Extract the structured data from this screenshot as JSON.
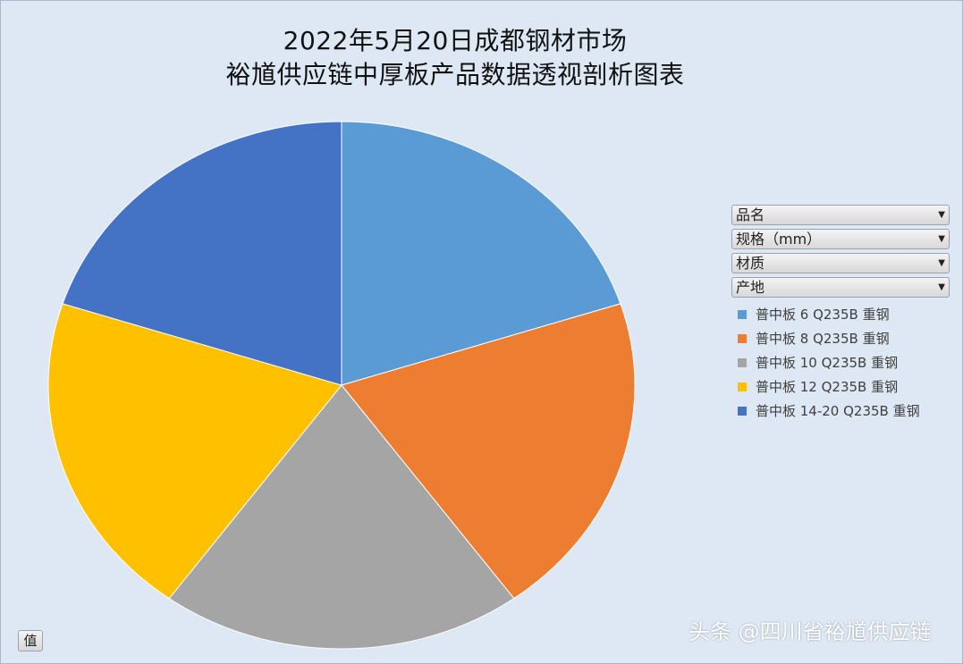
{
  "chart_data": {
    "type": "pie",
    "title": [
      "2022年5月20日成都钢材市场",
      "裕馗供应链中厚板产品数据透视剖析图表"
    ],
    "slices": [
      {
        "name": "普中板 6 Q235B 重钢",
        "value": 20,
        "color": "#5b9bd5"
      },
      {
        "name": "普中板 8 Q235B 重钢",
        "value": 20,
        "color": "#ed7d31"
      },
      {
        "name": "普中板 10 Q235B 重钢",
        "value": 20,
        "color": "#a5a5a5"
      },
      {
        "name": "普中板 12 Q235B 重钢",
        "value": 20,
        "color": "#ffc000"
      },
      {
        "name": "普中板 14-20 Q235B 重钢",
        "value": 20,
        "color": "#4472c4"
      }
    ],
    "legend_position": "right"
  },
  "filters": [
    {
      "label": "品名"
    },
    {
      "label": "规格（mm）"
    },
    {
      "label": "材质"
    },
    {
      "label": "产地"
    }
  ],
  "values_button": "值",
  "watermark": "头条 @四川省裕馗供应链"
}
